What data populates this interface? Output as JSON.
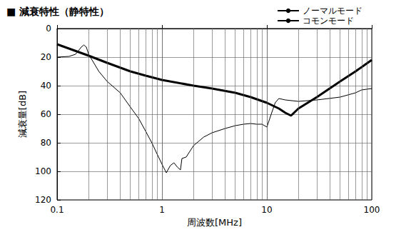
{
  "chart_data": {
    "type": "line",
    "title": "■ 減衰特性（静特性）",
    "x_label": "周波数[MHz]",
    "y_label": "減衰量[dB]",
    "log": "x",
    "grid": true,
    "legend": "upper right",
    "xlim": [
      0.1,
      100
    ],
    "xticks": [
      0.1,
      1,
      10,
      100
    ],
    "ylim": [
      0,
      120
    ],
    "yticks": [
      0,
      20,
      40,
      60,
      80,
      100,
      120
    ],
    "series": [
      {
        "name": "ノーマルモード",
        "color": "#000000",
        "line_style": "thin",
        "x": [
          0.1,
          0.13,
          0.15,
          0.17,
          0.18,
          0.19,
          0.2,
          0.25,
          0.3,
          0.4,
          0.5,
          0.6,
          0.7,
          0.8,
          0.9,
          1.0,
          1.1,
          1.2,
          1.3,
          1.4,
          1.5,
          1.55,
          1.7,
          2,
          2.5,
          3,
          4,
          5,
          6,
          7,
          8,
          9,
          10,
          11,
          12,
          13,
          15,
          20,
          30,
          50,
          70,
          80,
          100
        ],
        "values": [
          20,
          19.5,
          18,
          13,
          11.5,
          13,
          18,
          30,
          37,
          45,
          55,
          63,
          72,
          80,
          88,
          95,
          101,
          96,
          94,
          97,
          99,
          91,
          90,
          82,
          76,
          73,
          70,
          68,
          67,
          66.5,
          67,
          67,
          69,
          60,
          52,
          49,
          50,
          51,
          50,
          48,
          45,
          43,
          42
        ]
      },
      {
        "name": "コモンモード",
        "color": "#000000",
        "line_style": "thick",
        "x": [
          0.1,
          0.2,
          0.3,
          0.5,
          0.7,
          1,
          2,
          3,
          5,
          7,
          10,
          13,
          15,
          17,
          20,
          30,
          50,
          70,
          100
        ],
        "values": [
          11,
          19,
          24,
          30,
          33,
          36,
          40,
          42,
          45,
          48,
          52,
          56,
          59,
          61,
          56,
          48,
          37,
          30,
          22
        ]
      }
    ]
  }
}
